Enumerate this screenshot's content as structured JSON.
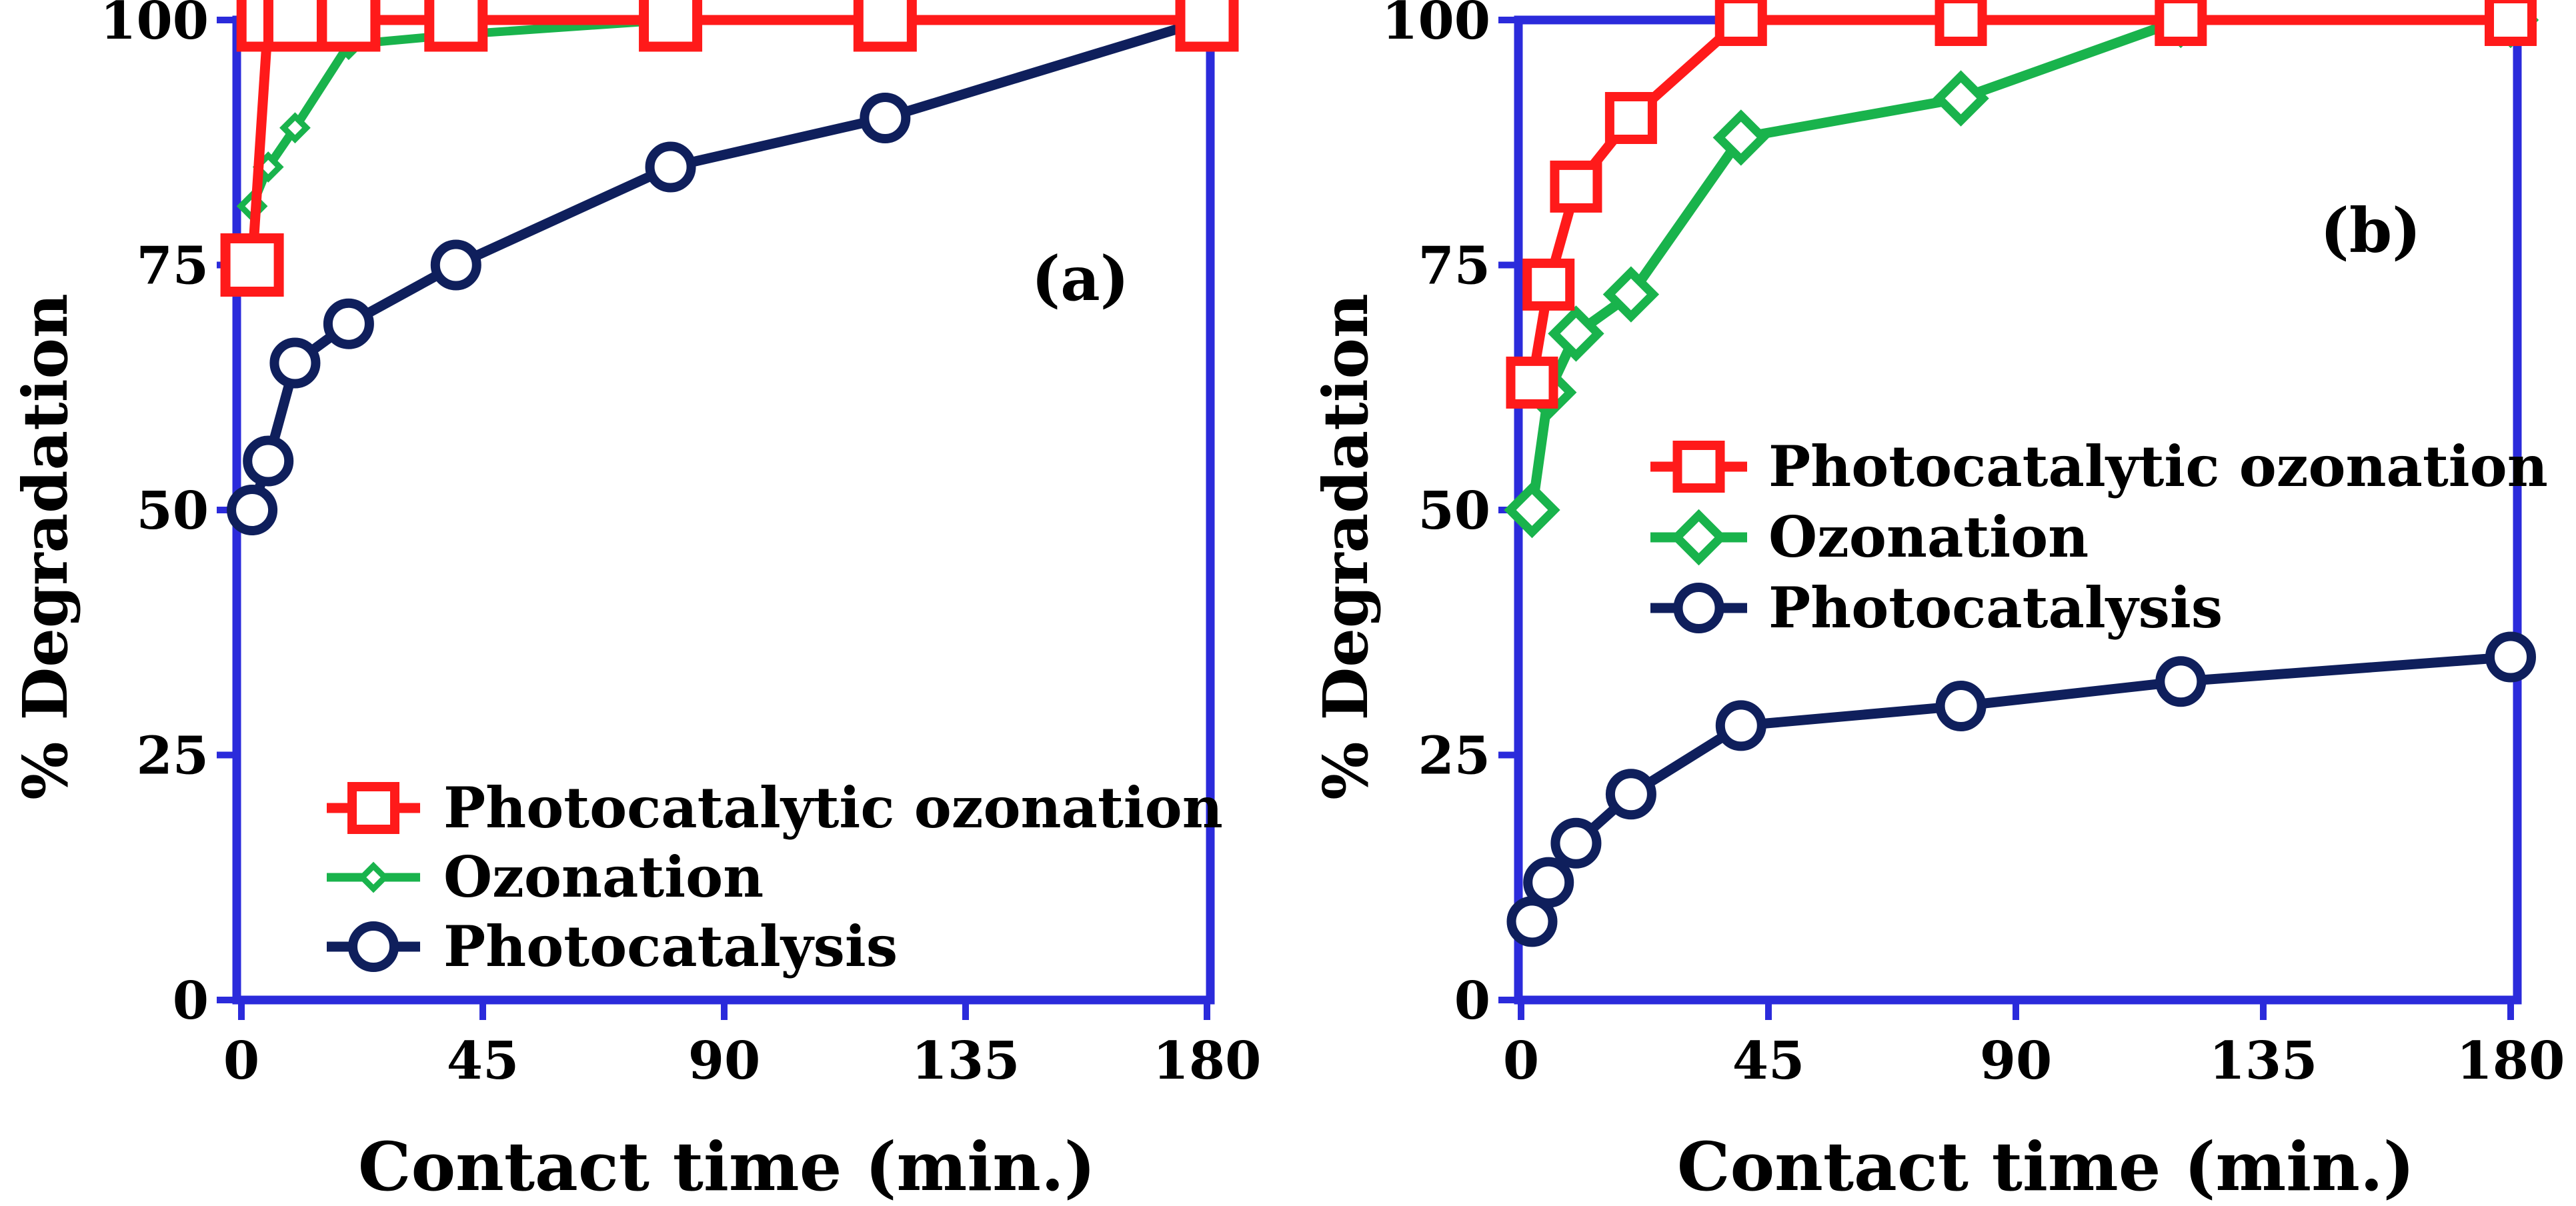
{
  "colors": {
    "frame": "#2b2bdb",
    "photocatalytic_ozonation": "#ff1a1a",
    "ozonation": "#19b34c",
    "photocatalysis": "#0f1f5c",
    "text": "#000000",
    "background": "#ffffff"
  },
  "chart_data": [
    {
      "id": "a",
      "type": "line",
      "panel_label": "(a)",
      "xlabel": "Contact time (min.)",
      "ylabel": "% Degradation",
      "xlim": [
        0,
        180
      ],
      "ylim": [
        0,
        100
      ],
      "xticks": [
        0,
        45,
        90,
        135,
        180
      ],
      "yticks": [
        0,
        25,
        50,
        75,
        100
      ],
      "legend_position": "bottom-right",
      "series": [
        {
          "name": "Photocatalytic ozonation",
          "color_key": "photocatalytic_ozonation",
          "marker": "square-large",
          "x": [
            2,
            5,
            10,
            20,
            40,
            80,
            120,
            180
          ],
          "y": [
            75,
            100,
            100,
            100,
            100,
            100,
            100,
            100
          ]
        },
        {
          "name": "Ozonation",
          "color_key": "ozonation",
          "marker": "diamond-small",
          "x": [
            2,
            5,
            10,
            20,
            40,
            80,
            120,
            180
          ],
          "y": [
            81,
            85,
            89,
            97.5,
            98.5,
            100,
            100,
            100
          ]
        },
        {
          "name": "Photocatalysis",
          "color_key": "photocatalysis",
          "marker": "circle",
          "x": [
            2,
            5,
            10,
            20,
            40,
            80,
            120,
            180
          ],
          "y": [
            50,
            55,
            65,
            69,
            75,
            85,
            90,
            100
          ]
        }
      ]
    },
    {
      "id": "b",
      "type": "line",
      "panel_label": "(b)",
      "xlabel": "Contact time (min.)",
      "ylabel": "% Degradation",
      "xlim": [
        0,
        180
      ],
      "ylim": [
        0,
        100
      ],
      "xticks": [
        0,
        45,
        90,
        135,
        180
      ],
      "yticks": [
        0,
        25,
        50,
        75,
        100
      ],
      "legend_position": "center-right",
      "series": [
        {
          "name": "Photocatalytic ozonation",
          "color_key": "photocatalytic_ozonation",
          "marker": "square",
          "x": [
            2,
            5,
            10,
            20,
            40,
            80,
            120,
            180
          ],
          "y": [
            63,
            73,
            83,
            90,
            100,
            100,
            100,
            100
          ]
        },
        {
          "name": "Ozonation",
          "color_key": "ozonation",
          "marker": "diamond",
          "x": [
            2,
            5,
            10,
            20,
            40,
            80,
            120,
            180
          ],
          "y": [
            50,
            62,
            68,
            72,
            88,
            92,
            100,
            100
          ]
        },
        {
          "name": "Photocatalysis",
          "color_key": "photocatalysis",
          "marker": "circle",
          "x": [
            2,
            5,
            10,
            20,
            40,
            80,
            120,
            180
          ],
          "y": [
            8,
            12,
            16,
            21,
            28,
            30,
            32.5,
            35
          ]
        }
      ]
    }
  ]
}
